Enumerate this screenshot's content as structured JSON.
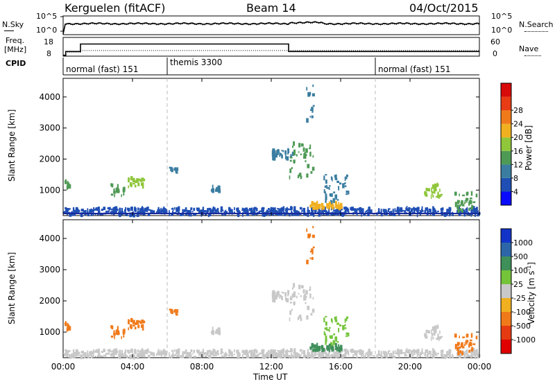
{
  "header": {
    "station": "Kerguelen (fitACF)",
    "beam": "Beam 14",
    "date": "04/Oct/2015"
  },
  "noise_panel": {
    "left_label": "N.Sky",
    "right_label": "N.Search",
    "left_ticks": [
      "10^5",
      "10^0"
    ],
    "right_ticks": [
      "10^5",
      "10^0"
    ]
  },
  "freq_panel": {
    "left_label_1": "Freq.",
    "left_label_2": "[MHz]",
    "left_ticks": [
      "18",
      "8"
    ],
    "right_ticks": [
      "60",
      "0"
    ],
    "right_label": "Nave",
    "chart_data": {
      "type": "line",
      "x_hours": [
        0,
        0.15,
        0.15,
        1.0,
        1.0,
        13.0,
        13.0,
        24.0
      ],
      "freq_mhz": [
        8.5,
        8.5,
        10.5,
        10.5,
        14.5,
        14.5,
        10.5,
        10.5
      ],
      "nave_x": [
        0,
        0.15,
        0.15,
        1.0,
        1.0,
        24.0
      ],
      "nave": [
        0,
        0,
        13,
        13,
        18,
        18
      ]
    }
  },
  "cpid": {
    "label": "CPID",
    "segments": [
      {
        "start": 0,
        "end": 6,
        "text": "normal (fast) 151"
      },
      {
        "start": 6,
        "end": 18,
        "text": "themis 3300"
      },
      {
        "start": 18,
        "end": 24,
        "text": "normal (fast) 151"
      }
    ]
  },
  "axes": {
    "ylabel": "Slant Range [km]",
    "xlabel": "Time UT",
    "y_ticks": [
      1000,
      2000,
      3000,
      4000
    ],
    "y_range": [
      180,
      4600
    ],
    "x_ticks": [
      "00:00",
      "04:00",
      "08:00",
      "12:00",
      "16:00",
      "20:00",
      "00:00"
    ],
    "x_range": [
      0,
      24
    ],
    "mode_change_hours": [
      6,
      18
    ]
  },
  "power_colorbar": {
    "label": "Power [dB]",
    "ticks": [
      "4",
      "8",
      "12",
      "16",
      "20",
      "24",
      "28"
    ],
    "colors": [
      "#0a0aff",
      "#1f4fb4",
      "#3a7da0",
      "#4e9a55",
      "#8fc63a",
      "#f0b020",
      "#f07a1a",
      "#e83c15",
      "#d80a0a"
    ]
  },
  "velocity_colorbar": {
    "label": "Velocity [m s^-1]",
    "ticks": [
      "1000",
      "500",
      "100",
      "25",
      "-25",
      "-100",
      "-500",
      "-1000"
    ],
    "colors": [
      "#1233c8",
      "#2c66a8",
      "#3f8f5a",
      "#74c43a",
      "#c8c8c8",
      "#f0b020",
      "#f07a1a",
      "#e53a12",
      "#e00000"
    ]
  },
  "chart_data": {
    "type": "heatmap",
    "title": "Kerguelen (fitACF) Beam 14 04/Oct/2015",
    "x_unit": "hours UT",
    "y_unit": "km",
    "echo_regions": [
      {
        "t0": 0.0,
        "t1": 24.0,
        "r0": 200,
        "r1": 420,
        "power_db": 6,
        "velocity": 25
      },
      {
        "t0": 0.0,
        "t1": 0.4,
        "r0": 1050,
        "r1": 1300,
        "power_db": 12,
        "velocity": -300
      },
      {
        "t0": 2.7,
        "t1": 3.5,
        "r0": 800,
        "r1": 1200,
        "power_db": 14,
        "velocity": -400
      },
      {
        "t0": 3.7,
        "t1": 4.6,
        "r0": 1100,
        "r1": 1400,
        "power_db": 16,
        "velocity": -400
      },
      {
        "t0": 6.1,
        "t1": 6.6,
        "r0": 1500,
        "r1": 1750,
        "power_db": 10,
        "velocity": -200
      },
      {
        "t0": 8.5,
        "t1": 9.0,
        "r0": 950,
        "r1": 1150,
        "power_db": 8,
        "velocity": 0
      },
      {
        "t0": 12.0,
        "t1": 13.2,
        "r0": 2000,
        "r1": 2300,
        "power_db": 8,
        "velocity": 0
      },
      {
        "t0": 13.0,
        "t1": 14.4,
        "r0": 1400,
        "r1": 2500,
        "power_db": 14,
        "velocity": 0
      },
      {
        "t0": 14.0,
        "t1": 14.4,
        "r0": 3200,
        "r1": 4400,
        "power_db": 8,
        "velocity": -150
      },
      {
        "t0": 14.2,
        "t1": 16.0,
        "r0": 400,
        "r1": 600,
        "power_db": 20,
        "velocity": 150
      },
      {
        "t0": 15.0,
        "t1": 16.5,
        "r0": 600,
        "r1": 1500,
        "power_db": 8,
        "velocity": 100
      },
      {
        "t0": 20.8,
        "t1": 21.8,
        "r0": 750,
        "r1": 1200,
        "power_db": 18,
        "velocity": 0
      },
      {
        "t0": 22.5,
        "t1": 23.8,
        "r0": 300,
        "r1": 900,
        "power_db": 14,
        "velocity": -150
      }
    ]
  }
}
